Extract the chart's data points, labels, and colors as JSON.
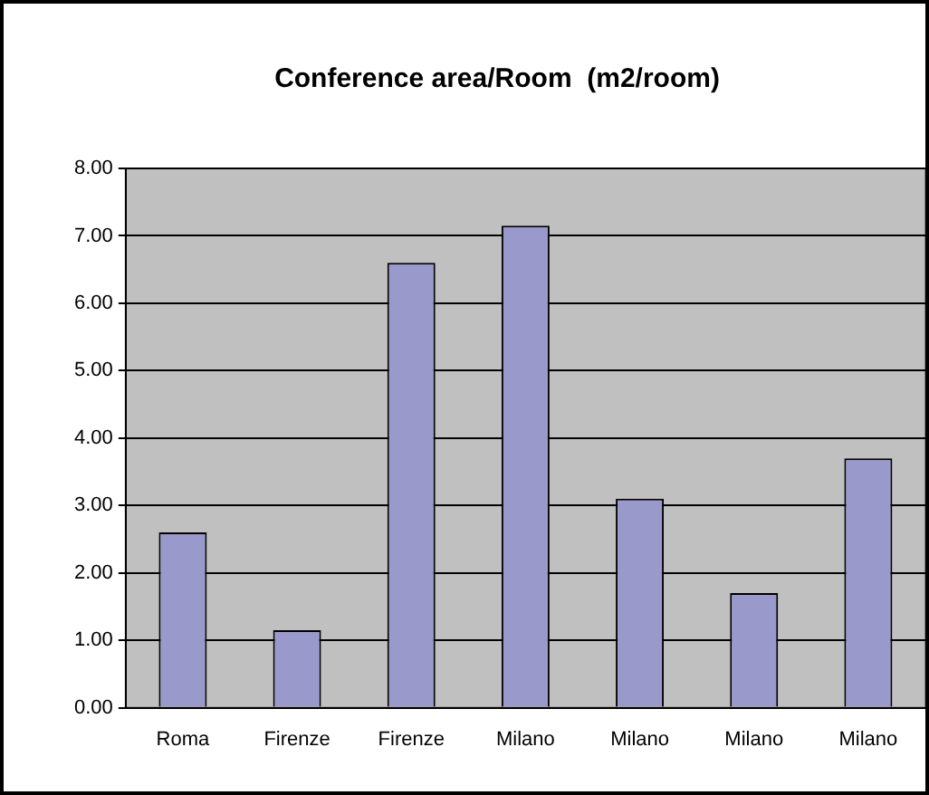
{
  "chart_data": {
    "type": "bar",
    "title": "Conference area/Room  (m2/room)",
    "categories": [
      "Roma",
      "Firenze",
      "Firenze",
      "Milano",
      "Milano",
      "Milano",
      "Milano"
    ],
    "values": [
      2.6,
      1.15,
      6.6,
      7.15,
      3.1,
      1.7,
      3.7
    ],
    "color": "#9999cc",
    "ylim": [
      0,
      8
    ],
    "yticks": [
      {
        "value": 0,
        "label": "0.00"
      },
      {
        "value": 1,
        "label": "1.00"
      },
      {
        "value": 2,
        "label": "2.00"
      },
      {
        "value": 3,
        "label": "3.00"
      },
      {
        "value": 4,
        "label": "4.00"
      },
      {
        "value": 5,
        "label": "5.00"
      },
      {
        "value": 6,
        "label": "6.00"
      },
      {
        "value": 7,
        "label": "7.00"
      },
      {
        "value": 8,
        "label": "8.00"
      }
    ],
    "grid": "y",
    "legend": false
  }
}
